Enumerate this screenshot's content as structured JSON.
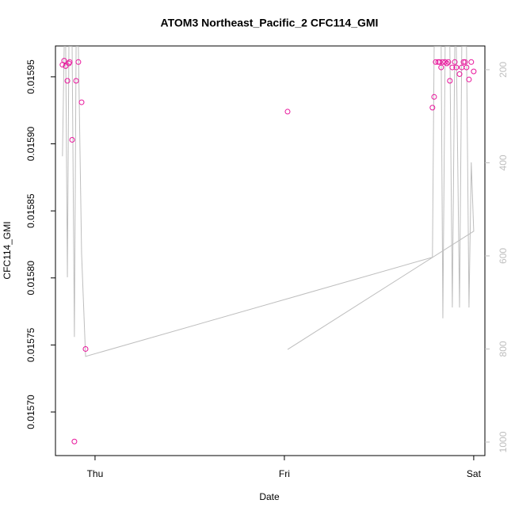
{
  "chart_data": {
    "type": "scatter",
    "title": "ATOM3 Northeast_Pacific_2 CFC114_GMI",
    "x_label": "Date",
    "y_label": "CFC114_GMI",
    "x": [
      -0.172,
      -0.163,
      -0.155,
      -0.146,
      -0.138,
      -0.134,
      -0.121,
      -0.109,
      -0.1,
      -0.088,
      -0.071,
      -0.05,
      1.782,
      1.791,
      1.799,
      1.812,
      1.82,
      1.828,
      1.837,
      1.849,
      1.858,
      1.866,
      1.874,
      1.887,
      1.9,
      1.908,
      1.925,
      1.937,
      1.946,
      1.954,
      1.962,
      1.975,
      1.987,
      2.0,
      1.017
    ],
    "series": [
      {
        "type": "scatter",
        "color": "#e8129a",
        "values": [
          0.015959,
          0.015962,
          0.015958,
          0.015947,
          0.01596,
          0.015961,
          0.015903,
          0.015678,
          0.015947,
          0.015961,
          0.015931,
          0.015747,
          0.015927,
          0.015935,
          0.015961,
          0.015961,
          0.015961,
          0.015957,
          0.015961,
          0.015961,
          0.01596,
          0.015961,
          0.015947,
          0.015957,
          0.015961,
          0.015957,
          0.015952,
          0.015957,
          0.015961,
          0.015961,
          0.015957,
          0.015948,
          0.015961,
          0.015954,
          0.015924
        ]
      },
      {
        "type": "line",
        "color": "#bebebe",
        "axis": "y2",
        "values": [
          386,
          150,
          150,
          646,
          150,
          150,
          150,
          774,
          150,
          150,
          595,
          816,
          603,
          150,
          150,
          150,
          150,
          150,
          734,
          150,
          150,
          150,
          150,
          711,
          150,
          150,
          711,
          150,
          150,
          150,
          150,
          711,
          399,
          547,
          801
        ]
      }
    ],
    "xlim": [
      -0.209,
      2.059
    ],
    "xticks": [
      {
        "value": 0,
        "label": "Thu"
      },
      {
        "value": 1,
        "label": "Fri"
      },
      {
        "value": 2,
        "label": "Sat"
      }
    ],
    "ylim": [
      0.0156675,
      0.015973
    ],
    "yticks": [
      {
        "value": 0.0157,
        "label": "0.01570"
      },
      {
        "value": 0.01575,
        "label": "0.01575"
      },
      {
        "value": 0.0158,
        "label": "0.01580"
      },
      {
        "value": 0.01585,
        "label": "0.01585"
      },
      {
        "value": 0.0159,
        "label": "0.01590"
      },
      {
        "value": 0.01595,
        "label": "0.01595"
      }
    ],
    "y2lim": [
      1029,
      149
    ],
    "y2ticks": [
      200,
      400,
      600,
      800,
      1000
    ],
    "y2_color": "#bebebe"
  }
}
